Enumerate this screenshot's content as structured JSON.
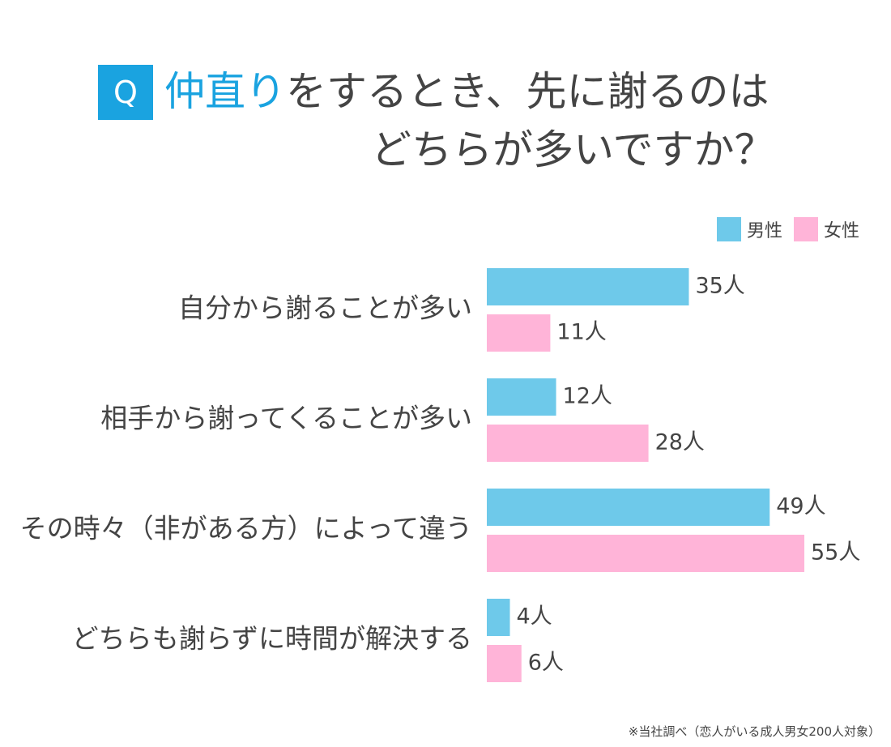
{
  "badge": "Q",
  "title": {
    "accent": "仲直り",
    "rest": "をするとき、先に謝るのは",
    "line2": "どちらが多いですか？"
  },
  "legend": {
    "male": "男性",
    "female": "女性"
  },
  "colors": {
    "accent": "#1aa3e0",
    "male": "#6ec9ea",
    "female": "#ffb4d8",
    "text": "#444444"
  },
  "chart_data": {
    "type": "bar",
    "orientation": "horizontal",
    "categories": [
      "自分から謝ることが多い",
      "相手から謝ってくることが多い",
      "その時々（非がある方）によって違う",
      "どちらも謝らずに時間が解決する"
    ],
    "series": [
      {
        "name": "男性",
        "values": [
          35,
          12,
          49,
          4
        ],
        "color": "#6ec9ea"
      },
      {
        "name": "女性",
        "values": [
          11,
          28,
          55,
          6
        ],
        "color": "#ffb4d8"
      }
    ],
    "value_suffix": "人",
    "legend_position": "top-right",
    "grid": false
  },
  "footnote": "※当社調べ（恋人がいる成人男女200人対象）"
}
